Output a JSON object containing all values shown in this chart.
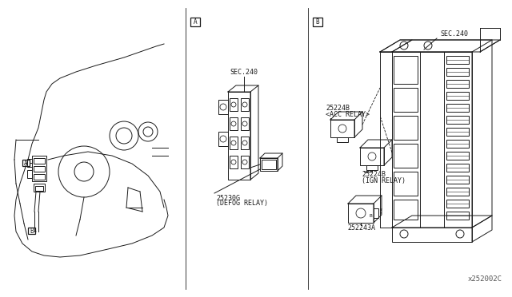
{
  "bg_color": "#ffffff",
  "line_color": "#1a1a1a",
  "fig_width": 6.4,
  "fig_height": 3.72,
  "dpi": 100,
  "label_A": "A",
  "label_B": "B",
  "sec240_A": "SEC.240",
  "part_A": "25230G",
  "part_A_desc": "(DEFOG RELAY)",
  "sec240_B": "SEC.240",
  "part_B1": "25224B",
  "part_B1_desc": "<ACC RELAY>",
  "part_B2": "25224B",
  "part_B2_desc": "(IGN RELAY)",
  "part_B3": "252243A",
  "watermark": "x252002C"
}
